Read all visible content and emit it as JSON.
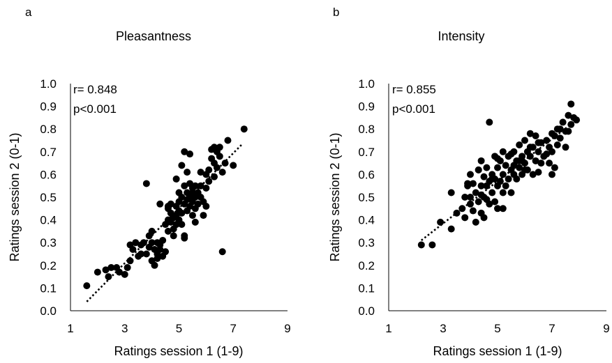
{
  "chart_data": [
    {
      "type": "scatter",
      "panel": "a",
      "title": "Pleasantness",
      "xlabel": "Ratings session 1 (1-9)",
      "ylabel": "Ratings session 2 (0-1)",
      "xlim": [
        1,
        9
      ],
      "ylim": [
        0.0,
        1.0
      ],
      "xticks": [
        "1",
        "3",
        "5",
        "7",
        "9"
      ],
      "yticks": [
        "0.0",
        "0.1",
        "0.2",
        "0.3",
        "0.4",
        "0.5",
        "0.6",
        "0.7",
        "0.8",
        "0.9",
        "1.0"
      ],
      "stat_r": "r= 0.848",
      "stat_p": "p<0.001",
      "trendline": {
        "style": "dotted",
        "x": [
          1.6,
          7.3
        ],
        "y": [
          0.04,
          0.73
        ]
      },
      "points": [
        [
          1.6,
          0.11
        ],
        [
          2.0,
          0.17
        ],
        [
          2.3,
          0.18
        ],
        [
          2.4,
          0.15
        ],
        [
          2.5,
          0.19
        ],
        [
          2.7,
          0.19
        ],
        [
          2.8,
          0.17
        ],
        [
          3.0,
          0.16
        ],
        [
          3.1,
          0.19
        ],
        [
          3.2,
          0.22
        ],
        [
          3.3,
          0.27
        ],
        [
          3.2,
          0.29
        ],
        [
          3.4,
          0.3
        ],
        [
          3.5,
          0.24
        ],
        [
          3.6,
          0.25
        ],
        [
          3.7,
          0.3
        ],
        [
          3.8,
          0.25
        ],
        [
          3.9,
          0.28
        ],
        [
          3.9,
          0.33
        ],
        [
          4.0,
          0.35
        ],
        [
          4.0,
          0.22
        ],
        [
          4.1,
          0.2
        ],
        [
          4.1,
          0.27
        ],
        [
          4.2,
          0.3
        ],
        [
          4.2,
          0.25
        ],
        [
          4.3,
          0.29
        ],
        [
          4.3,
          0.27
        ],
        [
          4.4,
          0.31
        ],
        [
          4.4,
          0.24
        ],
        [
          4.5,
          0.26
        ],
        [
          4.5,
          0.38
        ],
        [
          4.6,
          0.45
        ],
        [
          4.6,
          0.4
        ],
        [
          4.6,
          0.35
        ],
        [
          4.7,
          0.43
        ],
        [
          4.7,
          0.39
        ],
        [
          4.8,
          0.36
        ],
        [
          4.8,
          0.41
        ],
        [
          4.8,
          0.33
        ],
        [
          4.9,
          0.46
        ],
        [
          4.9,
          0.42
        ],
        [
          4.9,
          0.38
        ],
        [
          5.0,
          0.48
        ],
        [
          5.0,
          0.44
        ],
        [
          5.0,
          0.4
        ],
        [
          5.1,
          0.5
        ],
        [
          5.1,
          0.43
        ],
        [
          5.1,
          0.38
        ],
        [
          5.2,
          0.55
        ],
        [
          5.2,
          0.47
        ],
        [
          5.2,
          0.33
        ],
        [
          5.3,
          0.52
        ],
        [
          5.3,
          0.49
        ],
        [
          5.3,
          0.44
        ],
        [
          5.4,
          0.56
        ],
        [
          5.4,
          0.5
        ],
        [
          5.4,
          0.46
        ],
        [
          5.5,
          0.54
        ],
        [
          5.5,
          0.48
        ],
        [
          5.5,
          0.42
        ],
        [
          5.6,
          0.55
        ],
        [
          5.6,
          0.5
        ],
        [
          5.6,
          0.45
        ],
        [
          5.7,
          0.52
        ],
        [
          5.7,
          0.47
        ],
        [
          5.8,
          0.55
        ],
        [
          5.8,
          0.5
        ],
        [
          5.9,
          0.48
        ],
        [
          5.9,
          0.42
        ],
        [
          6.0,
          0.6
        ],
        [
          6.0,
          0.54
        ],
        [
          6.1,
          0.62
        ],
        [
          6.1,
          0.57
        ],
        [
          6.2,
          0.67
        ],
        [
          6.2,
          0.71
        ],
        [
          6.3,
          0.65
        ],
        [
          6.3,
          0.59
        ],
        [
          6.4,
          0.7
        ],
        [
          6.4,
          0.63
        ],
        [
          6.5,
          0.68
        ],
        [
          6.6,
          0.61
        ],
        [
          6.7,
          0.65
        ],
        [
          7.0,
          0.64
        ],
        [
          7.4,
          0.8
        ],
        [
          3.8,
          0.56
        ],
        [
          6.6,
          0.26
        ],
        [
          5.2,
          0.7
        ],
        [
          5.4,
          0.69
        ],
        [
          4.7,
          0.47
        ],
        [
          5.2,
          0.32
        ],
        [
          4.9,
          0.58
        ],
        [
          5.1,
          0.64
        ],
        [
          4.3,
          0.47
        ],
        [
          4.6,
          0.46
        ],
        [
          5.8,
          0.61
        ],
        [
          6.3,
          0.72
        ],
        [
          5.3,
          0.61
        ],
        [
          5.6,
          0.39
        ],
        [
          4.0,
          0.3
        ],
        [
          3.6,
          0.29
        ],
        [
          4.2,
          0.23
        ],
        [
          5.0,
          0.52
        ],
        [
          5.5,
          0.52
        ],
        [
          6.0,
          0.46
        ],
        [
          6.5,
          0.72
        ],
        [
          6.8,
          0.75
        ]
      ]
    },
    {
      "type": "scatter",
      "panel": "b",
      "title": "Intensity",
      "xlabel": "Ratings session 1 (1-9)",
      "ylabel": "Ratings session 2 (0-1)",
      "xlim": [
        1,
        9
      ],
      "ylim": [
        0.0,
        1.0
      ],
      "xticks": [
        "1",
        "3",
        "5",
        "7",
        "9"
      ],
      "yticks": [
        "0.0",
        "0.1",
        "0.2",
        "0.3",
        "0.4",
        "0.5",
        "0.6",
        "0.7",
        "0.8",
        "0.9",
        "1.0"
      ],
      "stat_r": "r= 0.855",
      "stat_p": "p<0.001",
      "trendline": {
        "style": "dotted",
        "x": [
          2.2,
          7.9
        ],
        "y": [
          0.31,
          0.84
        ]
      },
      "points": [
        [
          2.2,
          0.29
        ],
        [
          2.6,
          0.29
        ],
        [
          2.9,
          0.39
        ],
        [
          3.3,
          0.36
        ],
        [
          3.3,
          0.52
        ],
        [
          3.5,
          0.43
        ],
        [
          3.7,
          0.45
        ],
        [
          3.8,
          0.5
        ],
        [
          3.8,
          0.41
        ],
        [
          3.9,
          0.55
        ],
        [
          4.0,
          0.6
        ],
        [
          4.0,
          0.47
        ],
        [
          4.1,
          0.56
        ],
        [
          4.1,
          0.44
        ],
        [
          4.2,
          0.52
        ],
        [
          4.2,
          0.39
        ],
        [
          4.3,
          0.62
        ],
        [
          4.3,
          0.48
        ],
        [
          4.4,
          0.66
        ],
        [
          4.4,
          0.55
        ],
        [
          4.4,
          0.43
        ],
        [
          4.5,
          0.59
        ],
        [
          4.5,
          0.5
        ],
        [
          4.5,
          0.41
        ],
        [
          4.6,
          0.63
        ],
        [
          4.6,
          0.55
        ],
        [
          4.7,
          0.57
        ],
        [
          4.7,
          0.47
        ],
        [
          4.8,
          0.6
        ],
        [
          4.8,
          0.52
        ],
        [
          4.9,
          0.68
        ],
        [
          4.9,
          0.58
        ],
        [
          4.9,
          0.48
        ],
        [
          5.0,
          0.63
        ],
        [
          5.0,
          0.55
        ],
        [
          5.0,
          0.45
        ],
        [
          5.1,
          0.66
        ],
        [
          5.1,
          0.57
        ],
        [
          5.2,
          0.7
        ],
        [
          5.2,
          0.6
        ],
        [
          5.2,
          0.52
        ],
        [
          5.3,
          0.64
        ],
        [
          5.3,
          0.55
        ],
        [
          5.4,
          0.68
        ],
        [
          5.4,
          0.58
        ],
        [
          5.5,
          0.62
        ],
        [
          5.5,
          0.52
        ],
        [
          5.6,
          0.7
        ],
        [
          5.6,
          0.6
        ],
        [
          5.7,
          0.66
        ],
        [
          5.7,
          0.58
        ],
        [
          5.8,
          0.73
        ],
        [
          5.8,
          0.63
        ],
        [
          5.9,
          0.68
        ],
        [
          5.9,
          0.6
        ],
        [
          6.0,
          0.75
        ],
        [
          6.0,
          0.65
        ],
        [
          6.1,
          0.7
        ],
        [
          6.1,
          0.62
        ],
        [
          6.2,
          0.78
        ],
        [
          6.2,
          0.68
        ],
        [
          6.3,
          0.72
        ],
        [
          6.4,
          0.77
        ],
        [
          6.4,
          0.66
        ],
        [
          6.5,
          0.7
        ],
        [
          6.5,
          0.61
        ],
        [
          6.6,
          0.74
        ],
        [
          6.7,
          0.68
        ],
        [
          6.8,
          0.75
        ],
        [
          6.9,
          0.72
        ],
        [
          6.9,
          0.65
        ],
        [
          7.0,
          0.78
        ],
        [
          7.0,
          0.7
        ],
        [
          7.1,
          0.77
        ],
        [
          7.1,
          0.63
        ],
        [
          7.2,
          0.8
        ],
        [
          7.3,
          0.76
        ],
        [
          7.4,
          0.83
        ],
        [
          7.5,
          0.79
        ],
        [
          7.6,
          0.86
        ],
        [
          7.7,
          0.91
        ],
        [
          7.7,
          0.82
        ],
        [
          7.8,
          0.85
        ],
        [
          7.9,
          0.84
        ],
        [
          4.7,
          0.83
        ],
        [
          4.3,
          0.62
        ],
        [
          5.5,
          0.69
        ],
        [
          6.3,
          0.6
        ],
        [
          7.0,
          0.6
        ],
        [
          4.0,
          0.5
        ],
        [
          5.2,
          0.45
        ],
        [
          6.6,
          0.65
        ],
        [
          3.9,
          0.56
        ],
        [
          4.6,
          0.49
        ],
        [
          5.9,
          0.66
        ],
        [
          7.5,
          0.72
        ],
        [
          6.2,
          0.72
        ],
        [
          5.0,
          0.67
        ],
        [
          4.8,
          0.58
        ],
        [
          6.8,
          0.69
        ],
        [
          7.3,
          0.8
        ],
        [
          6.0,
          0.62
        ],
        [
          5.6,
          0.64
        ],
        [
          4.4,
          0.51
        ],
        [
          7.6,
          0.79
        ],
        [
          7.2,
          0.73
        ],
        [
          5.8,
          0.66
        ],
        [
          6.5,
          0.74
        ]
      ]
    }
  ]
}
